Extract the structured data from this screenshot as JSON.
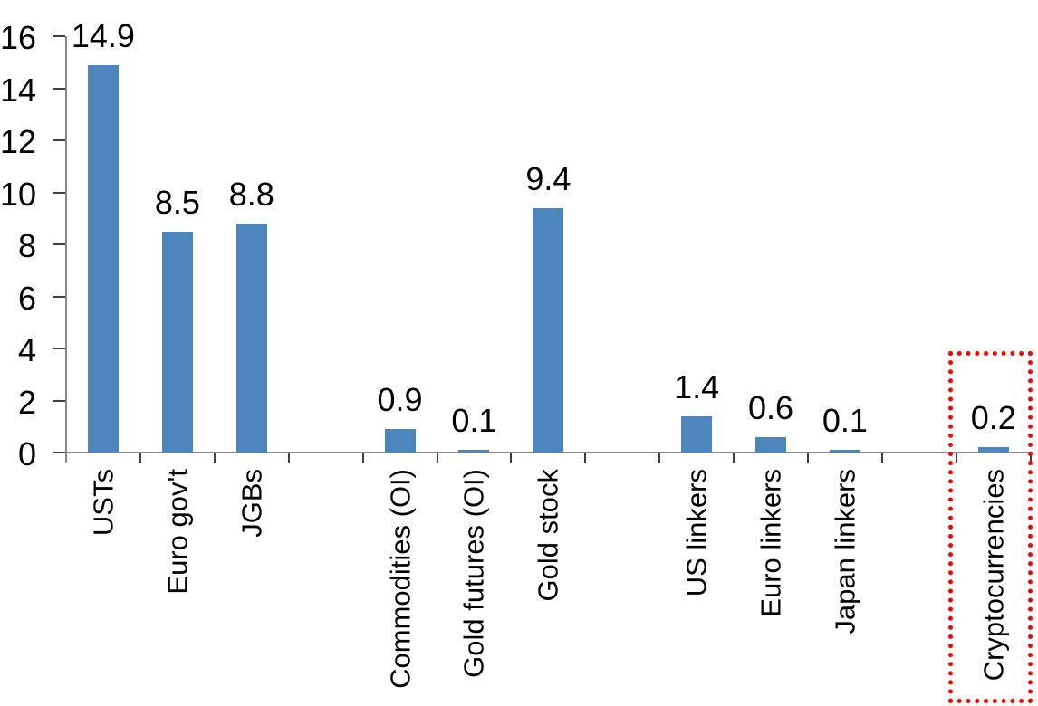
{
  "chart_data": {
    "type": "bar",
    "title": "",
    "xlabel": "",
    "ylabel": "",
    "categories": [
      "USTs",
      "Euro gov't",
      "JGBs",
      "Commodities (OI)",
      "Gold futures (OI)",
      "Gold stock",
      "US linkers",
      "Euro linkers",
      "Japan linkers",
      "Cryptocurrencies"
    ],
    "values": [
      14.9,
      8.5,
      8.8,
      0.9,
      0.1,
      9.4,
      1.4,
      0.6,
      0.1,
      0.2
    ],
    "data_labels": [
      "14.9",
      "8.5",
      "8.8",
      "0.9",
      "0.1",
      "9.4",
      "1.4",
      "0.6",
      "0.1",
      "0.2"
    ],
    "y_ticks": [
      0,
      2,
      4,
      6,
      8,
      10,
      12,
      14,
      16
    ],
    "ylim": [
      0,
      16
    ],
    "grid": false,
    "legend": false,
    "bar_color": "#4D86BC",
    "axis_color": "#888888",
    "tick_color": "#3F3F3F",
    "text_color": "#000000",
    "slot_indices": [
      0,
      1,
      2,
      4,
      5,
      6,
      8,
      9,
      10,
      12
    ],
    "num_slots": 13,
    "highlight": {
      "category": "Cryptocurrencies",
      "box_style": "dotted",
      "box_color": "#FF0000"
    }
  }
}
